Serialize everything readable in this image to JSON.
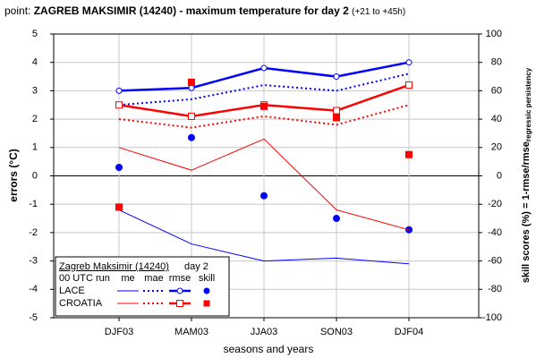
{
  "chart_data": {
    "type": "line",
    "title": {
      "prefix": "point:",
      "main": "ZAGREB MAKSIMIR (14240) - maximum temperature for day 2",
      "suffix": "(+21 to +45h)"
    },
    "xlabel": "seasons and years",
    "ylabel": "errors (°C)",
    "y2label": {
      "main": "skill scores (%) = 1-rmse/rmse",
      "sub": "regressic persistency"
    },
    "categories": [
      "DJF03",
      "MAM03",
      "JJA03",
      "SON03",
      "DJF04"
    ],
    "ylim": [
      -5,
      5
    ],
    "yticks": [
      -5,
      -4,
      -3,
      -2,
      -1,
      0,
      1,
      2,
      3,
      4,
      5
    ],
    "y2lim": [
      -100,
      100
    ],
    "y2ticks": [
      -100,
      -80,
      -60,
      -40,
      -20,
      0,
      20,
      40,
      60,
      80,
      100
    ],
    "grid": true,
    "legend": {
      "title": "Zagreb Maksimir (14240)",
      "day": "day 2",
      "run": "00 UTC run",
      "columns": [
        "me",
        "mae",
        "rmse",
        "skill"
      ]
    },
    "groups": [
      {
        "name": "LACE",
        "color": "#0000ff",
        "marker": "circle",
        "values": [
          [
            -1.2,
            -2.4,
            -3.0,
            -2.9,
            -3.1
          ],
          [
            2.5,
            2.7,
            3.2,
            3.0,
            3.6
          ],
          [
            3.0,
            3.1,
            3.8,
            3.5,
            4.0
          ],
          [
            6,
            27,
            -14,
            -30,
            -38
          ]
        ]
      },
      {
        "name": "CROATIA",
        "color": "#ff0000",
        "marker": "square",
        "values": [
          [
            1.0,
            0.2,
            1.3,
            -1.2,
            -1.9
          ],
          [
            2.0,
            1.7,
            2.1,
            1.8,
            2.5
          ],
          [
            2.5,
            2.1,
            2.5,
            2.3,
            3.2
          ],
          [
            -22,
            66,
            49,
            41,
            15
          ]
        ]
      }
    ]
  }
}
